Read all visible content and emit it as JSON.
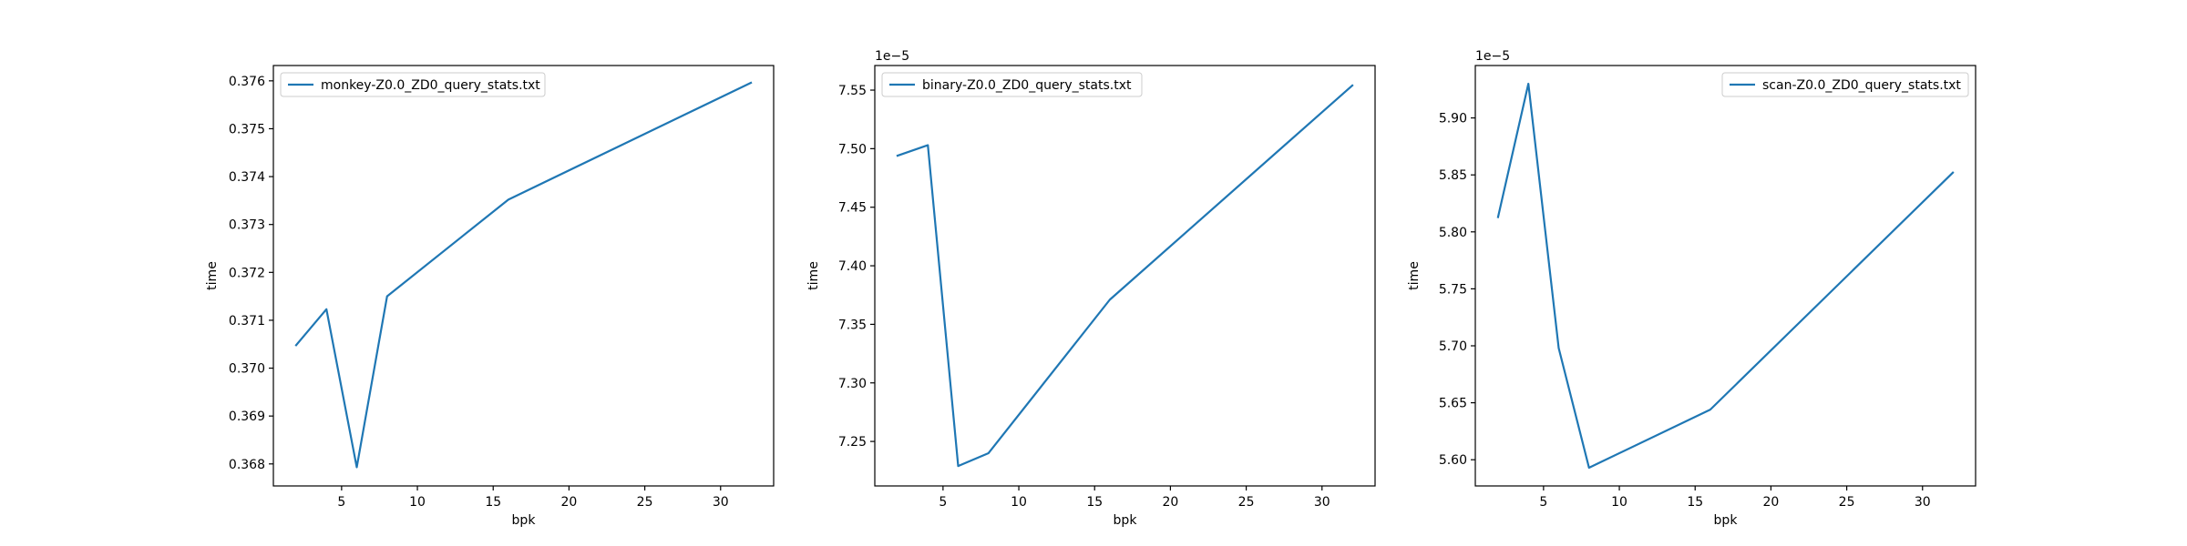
{
  "figure": {
    "background": "#ffffff",
    "line_color": "#1f77b4"
  },
  "chart_data": [
    {
      "type": "line",
      "xlabel": "bpk",
      "ylabel": "time",
      "xlim": [
        0.5,
        33.5
      ],
      "ylim": [
        0.36754,
        0.37632
      ],
      "xticks": [
        5,
        10,
        15,
        20,
        25,
        30
      ],
      "xtick_labels": [
        "5",
        "10",
        "15",
        "20",
        "25",
        "30"
      ],
      "yticks": [
        0.368,
        0.369,
        0.37,
        0.371,
        0.372,
        0.373,
        0.374,
        0.375,
        0.376
      ],
      "ytick_labels": [
        "0.368",
        "0.369",
        "0.370",
        "0.371",
        "0.372",
        "0.373",
        "0.374",
        "0.375",
        "0.376"
      ],
      "offset_label": "",
      "legend_position": "upper left",
      "grid": false,
      "series": [
        {
          "name": "monkey-Z0.0_ZD0_query_stats.txt",
          "color": "#1f77b4",
          "x": [
            2,
            4,
            6,
            8,
            16,
            32
          ],
          "y": [
            0.37048,
            0.37123,
            0.36793,
            0.3715,
            0.37352,
            0.37596
          ]
        }
      ]
    },
    {
      "type": "line",
      "xlabel": "bpk",
      "ylabel": "time",
      "xlim": [
        0.5,
        33.5
      ],
      "ylim": [
        7.212,
        7.571
      ],
      "xticks": [
        5,
        10,
        15,
        20,
        25,
        30
      ],
      "xtick_labels": [
        "5",
        "10",
        "15",
        "20",
        "25",
        "30"
      ],
      "yticks": [
        7.25,
        7.3,
        7.35,
        7.4,
        7.45,
        7.5,
        7.55
      ],
      "ytick_labels": [
        "7.25",
        "7.30",
        "7.35",
        "7.40",
        "7.45",
        "7.50",
        "7.55"
      ],
      "offset_label": "1e−5",
      "legend_position": "upper left",
      "grid": false,
      "series": [
        {
          "name": "binary-Z0.0_ZD0_query_stats.txt",
          "color": "#1f77b4",
          "x": [
            2,
            4,
            6,
            8,
            16,
            32
          ],
          "y": [
            7.494,
            7.503,
            7.229,
            7.24,
            7.371,
            7.554
          ]
        }
      ]
    },
    {
      "type": "line",
      "xlabel": "bpk",
      "ylabel": "time",
      "xlim": [
        0.5,
        33.5
      ],
      "ylim": [
        5.577,
        5.946
      ],
      "xticks": [
        5,
        10,
        15,
        20,
        25,
        30
      ],
      "xtick_labels": [
        "5",
        "10",
        "15",
        "20",
        "25",
        "30"
      ],
      "yticks": [
        5.6,
        5.65,
        5.7,
        5.75,
        5.8,
        5.85,
        5.9
      ],
      "ytick_labels": [
        "5.60",
        "5.65",
        "5.70",
        "5.75",
        "5.80",
        "5.85",
        "5.90"
      ],
      "offset_label": "1e−5",
      "legend_position": "upper right",
      "grid": false,
      "series": [
        {
          "name": "scan-Z0.0_ZD0_query_stats.txt",
          "color": "#1f77b4",
          "x": [
            2,
            4,
            6,
            8,
            16,
            32
          ],
          "y": [
            5.813,
            5.93,
            5.698,
            5.593,
            5.644,
            5.852
          ]
        }
      ]
    }
  ]
}
